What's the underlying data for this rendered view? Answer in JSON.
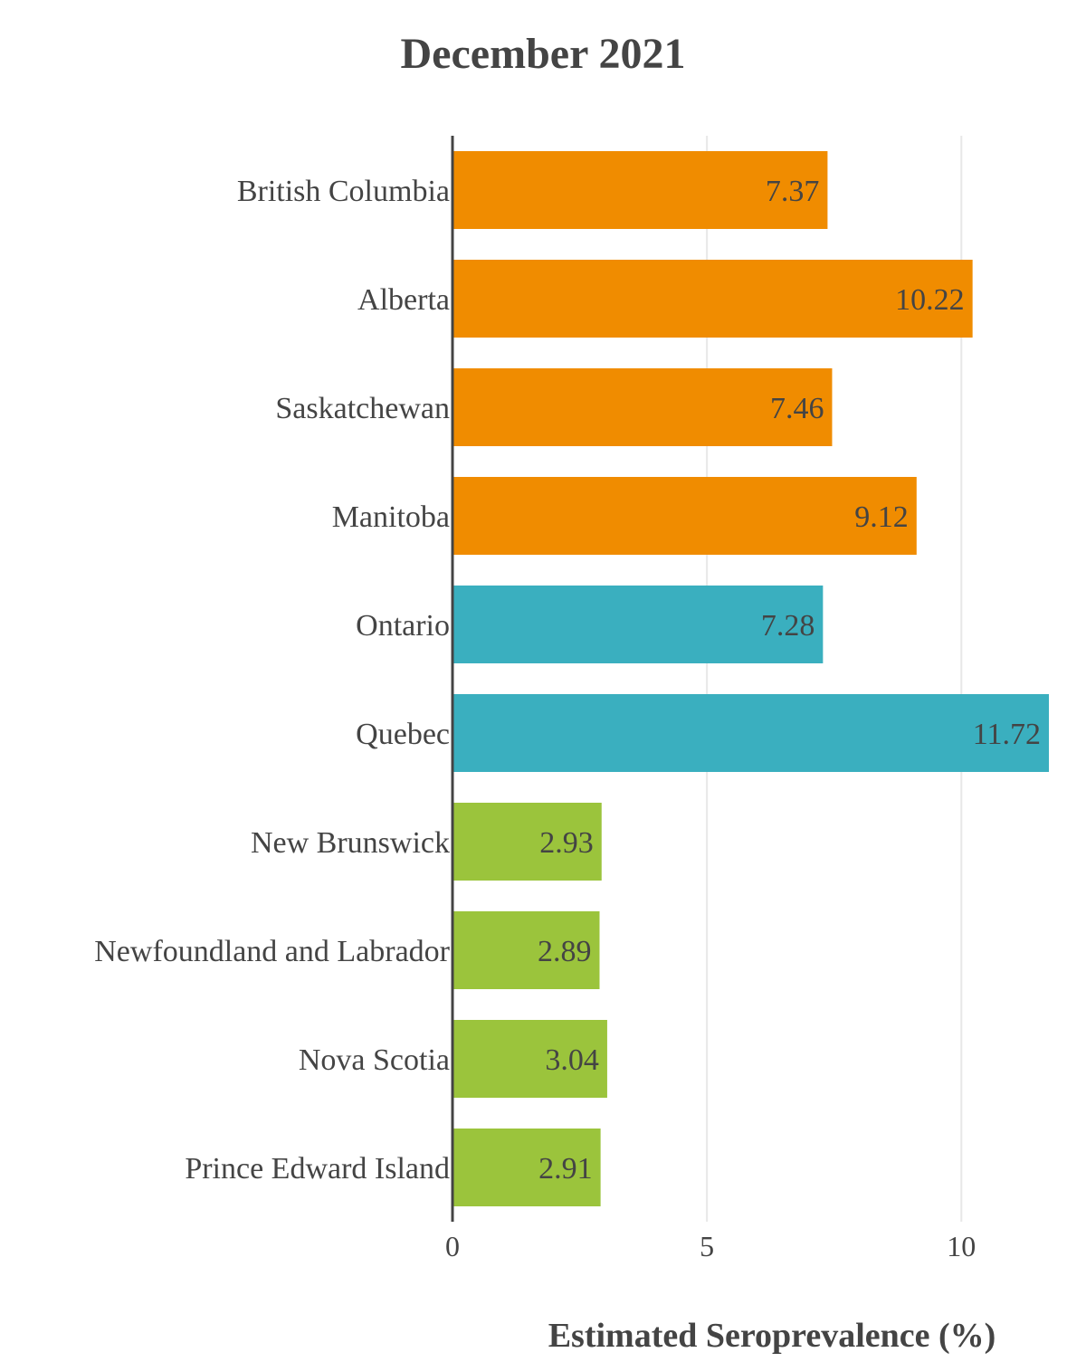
{
  "chart_data": {
    "type": "bar",
    "orientation": "horizontal",
    "title": "December 2021",
    "xlabel": "Estimated Seroprevalence (%)",
    "ylabel": "",
    "xlim": [
      0,
      11.72
    ],
    "xticks": [
      0,
      5,
      10
    ],
    "grid": true,
    "categories": [
      "British Columbia",
      "Alberta",
      "Saskatchewan",
      "Manitoba",
      "Ontario",
      "Quebec",
      "New Brunswick",
      "Newfoundland and Labrador",
      "Nova Scotia",
      "Prince Edward Island"
    ],
    "values": [
      7.37,
      10.22,
      7.46,
      9.12,
      7.28,
      11.72,
      2.93,
      2.89,
      3.04,
      2.91
    ],
    "data_labels": [
      "7.37",
      "10.22",
      "7.46",
      "9.12",
      "7.28",
      "11.72",
      "2.93",
      "2.89",
      "3.04",
      "2.91"
    ],
    "bar_colors": [
      "#f08c00",
      "#f08c00",
      "#f08c00",
      "#f08c00",
      "#3aafbf",
      "#3aafbf",
      "#9bc43c",
      "#9bc43c",
      "#9bc43c",
      "#9bc43c"
    ],
    "text_color": "#444444",
    "grid_color": "#e8e8e8",
    "axis_color": "#444444"
  }
}
